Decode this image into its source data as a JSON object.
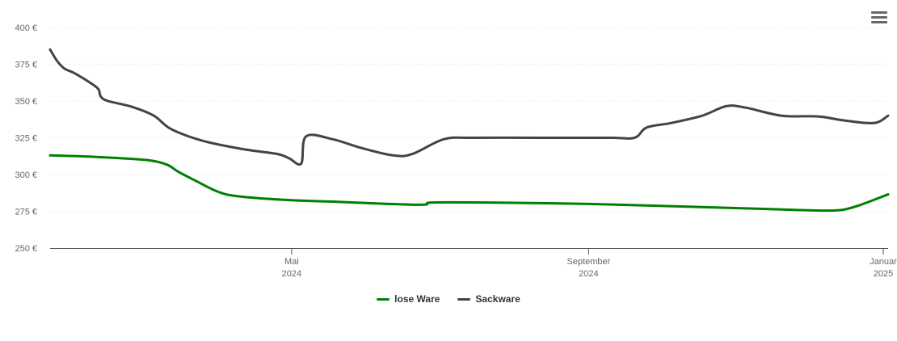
{
  "chart_data": {
    "type": "line",
    "y_ticks": [
      "250 €",
      "275 €",
      "300 €",
      "325 €",
      "350 €",
      "375 €",
      "400 €"
    ],
    "ylim": [
      250,
      400
    ],
    "y_tick_values": [
      250,
      275,
      300,
      325,
      350,
      375,
      400
    ],
    "x_ticks": [
      {
        "date": "2024-05-01",
        "line1": "Mai",
        "line2": "2024"
      },
      {
        "date": "2024-09-01",
        "line1": "September",
        "line2": "2024"
      },
      {
        "date": "2025-01-01",
        "line1": "Januar",
        "line2": "2025"
      }
    ],
    "xlim": [
      "2024-01-22",
      "2025-01-03"
    ],
    "grid": true,
    "legend_position": "bottom-center",
    "series": [
      {
        "name": "lose Ware",
        "color": "#008000",
        "points": [
          [
            "2024-01-22",
            313
          ],
          [
            "2024-02-10",
            312
          ],
          [
            "2024-03-01",
            310
          ],
          [
            "2024-03-10",
            307
          ],
          [
            "2024-03-15",
            302
          ],
          [
            "2024-03-22",
            296
          ],
          [
            "2024-04-01",
            288
          ],
          [
            "2024-04-10",
            285
          ],
          [
            "2024-05-01",
            282.5
          ],
          [
            "2024-05-20",
            281.5
          ],
          [
            "2024-06-10",
            280
          ],
          [
            "2024-06-25",
            279.5
          ],
          [
            "2024-06-28",
            281
          ],
          [
            "2024-07-20",
            281
          ],
          [
            "2024-09-01",
            280
          ],
          [
            "2024-10-15",
            278
          ],
          [
            "2024-11-15",
            276.5
          ],
          [
            "2024-12-10",
            275.5
          ],
          [
            "2024-12-20",
            278
          ],
          [
            "2025-01-03",
            286.5
          ]
        ]
      },
      {
        "name": "Sackware",
        "color": "#434348",
        "points": [
          [
            "2024-01-22",
            385
          ],
          [
            "2024-01-25",
            377
          ],
          [
            "2024-01-28",
            372
          ],
          [
            "2024-02-01",
            369
          ],
          [
            "2024-02-08",
            362
          ],
          [
            "2024-02-11",
            358
          ],
          [
            "2024-02-12",
            353
          ],
          [
            "2024-02-15",
            350
          ],
          [
            "2024-02-25",
            346
          ],
          [
            "2024-03-05",
            340
          ],
          [
            "2024-03-12",
            331
          ],
          [
            "2024-03-25",
            323
          ],
          [
            "2024-04-10",
            317.5
          ],
          [
            "2024-04-25",
            314
          ],
          [
            "2024-04-30",
            311
          ],
          [
            "2024-05-05",
            307.5
          ],
          [
            "2024-05-07",
            326
          ],
          [
            "2024-05-18",
            324
          ],
          [
            "2024-05-30",
            318
          ],
          [
            "2024-06-12",
            313
          ],
          [
            "2024-06-20",
            314
          ],
          [
            "2024-07-03",
            324
          ],
          [
            "2024-07-15",
            325
          ],
          [
            "2024-08-10",
            325
          ],
          [
            "2024-09-10",
            325
          ],
          [
            "2024-09-20",
            325
          ],
          [
            "2024-09-25",
            332
          ],
          [
            "2024-10-05",
            335
          ],
          [
            "2024-10-18",
            340
          ],
          [
            "2024-10-28",
            346.5
          ],
          [
            "2024-11-05",
            345.5
          ],
          [
            "2024-11-20",
            340
          ],
          [
            "2024-12-05",
            339.5
          ],
          [
            "2024-12-15",
            337
          ],
          [
            "2024-12-28",
            335
          ],
          [
            "2025-01-03",
            340
          ]
        ]
      }
    ]
  },
  "legend": [
    {
      "label": "lose Ware",
      "color": "#008000"
    },
    {
      "label": "Sackware",
      "color": "#434348"
    }
  ],
  "menu_icon": "hamburger-menu-icon"
}
